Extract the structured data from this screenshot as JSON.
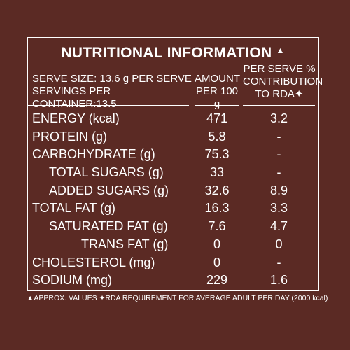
{
  "panel": {
    "title": "NUTRITIONAL INFORMATION",
    "title_mark": "▲",
    "serve_size_line": "SERVE SIZE: 13.6 g PER SERVE",
    "servings_line": "SERVINGS PER CONTAINER:13.5",
    "amount_header_line1": "AMOUNT",
    "amount_header_line2": "PER 100 g",
    "rda_header_line1": "PER SERVE %",
    "rda_header_line2": "CONTRIBUTION",
    "rda_header_line3": "TO RDA✦"
  },
  "rows": [
    {
      "label": "ENERGY (kcal)",
      "amount": "471",
      "rda": "3.2"
    },
    {
      "label": "PROTEIN (g)",
      "amount": "5.8",
      "rda": "-"
    },
    {
      "label": "CARBOHYDRATE (g)",
      "amount": "75.3",
      "rda": "-"
    },
    {
      "label": "TOTAL SUGARS (g)",
      "amount": "33",
      "rda": "-"
    },
    {
      "label": "ADDED SUGARS (g)",
      "amount": "32.6",
      "rda": "8.9"
    },
    {
      "label": "TOTAL FAT (g)",
      "amount": "16.3",
      "rda": "3.3"
    },
    {
      "label": "SATURATED FAT (g)",
      "amount": "7.6",
      "rda": "4.7"
    },
    {
      "label": "TRANS FAT (g)",
      "amount": "0",
      "rda": "0"
    },
    {
      "label": "CHOLESTEROL (mg)",
      "amount": "0",
      "rda": "-"
    },
    {
      "label": "SODIUM (mg)",
      "amount": "229",
      "rda": "1.6"
    }
  ],
  "footnote": "▲APPROX. VALUES ✦RDA REQUIREMENT FOR AVERAGE ADULT PER DAY (2000 kcal)",
  "colors": {
    "background": "#5b2a24",
    "text": "#ffffff"
  }
}
